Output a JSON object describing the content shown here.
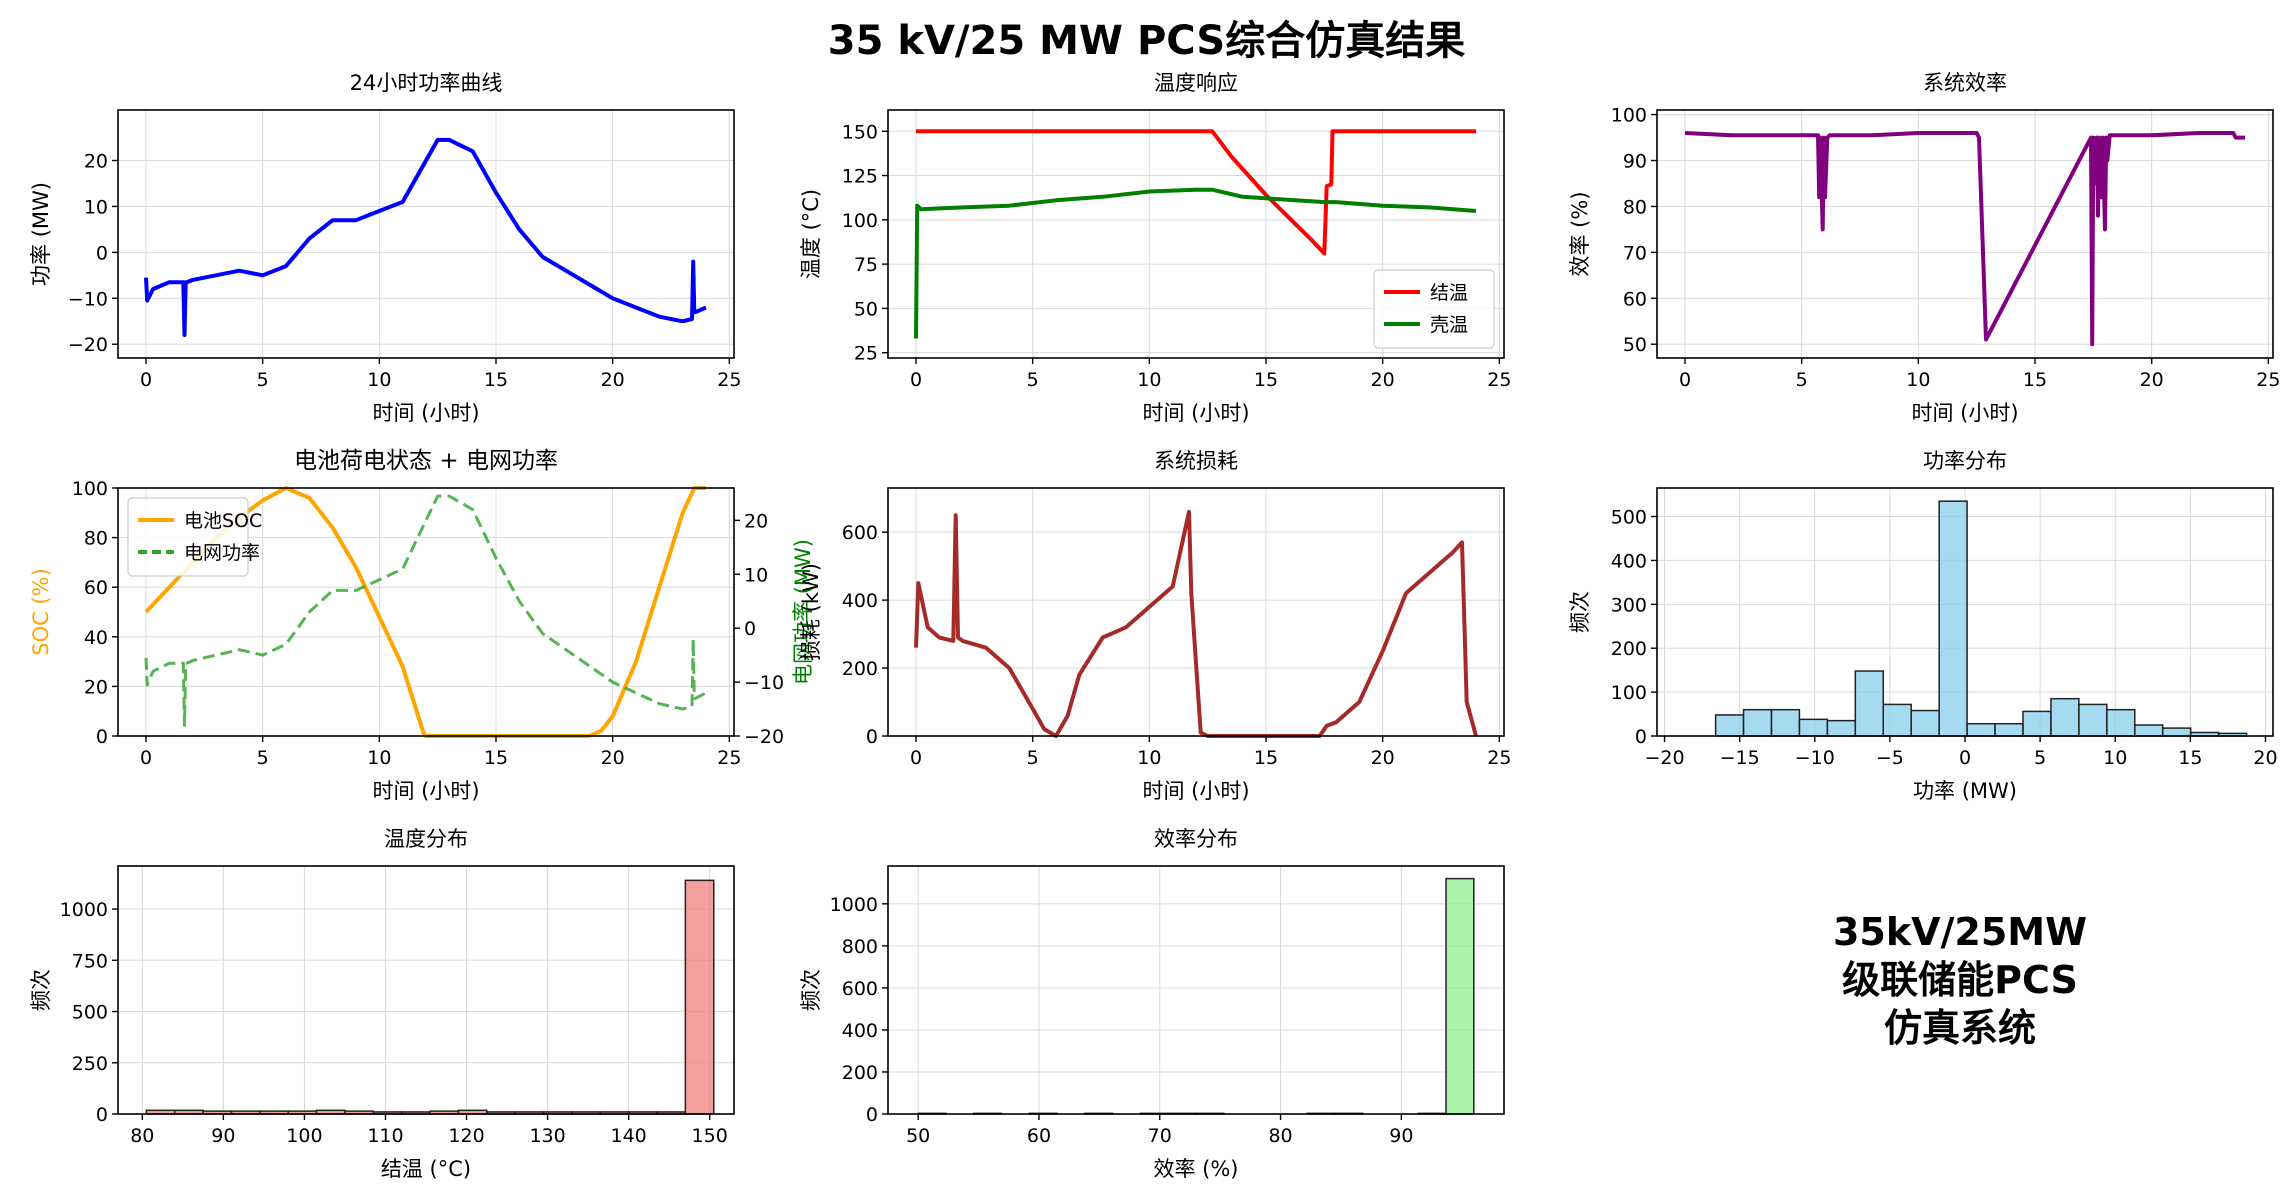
{
  "figure": {
    "suptitle": "35 kV/25 MW PCS综合仿真结果",
    "note": "35kV/25MW\n级联储能PCS\n仿真系统"
  },
  "chart_data": [
    {
      "id": "power",
      "type": "line",
      "title": "24小时功率曲线",
      "xlabel": "时间 (小时)",
      "ylabel": "功率 (MW)",
      "xlim": [
        -1.2,
        25.2
      ],
      "ylim": [
        -23,
        31
      ],
      "xticks": [
        0,
        5,
        10,
        15,
        20,
        25
      ],
      "yticks": [
        -20,
        -10,
        0,
        10,
        20
      ],
      "grid": true,
      "series": [
        {
          "color": "#0000ff",
          "x": [
            0,
            0.05,
            0.3,
            1,
            1.6,
            1.65,
            1.7,
            1.75,
            2,
            3,
            4,
            5,
            6,
            7,
            8,
            9,
            10,
            11,
            12,
            12.5,
            13,
            14,
            15,
            16,
            17,
            18,
            19,
            20,
            21,
            22,
            23,
            23.4,
            23.45,
            23.5,
            23.55,
            24
          ],
          "y": [
            -5.5,
            -10.5,
            -8,
            -6.5,
            -6.5,
            -18,
            -6.5,
            -6.5,
            -6,
            -5,
            -4,
            -5,
            -3,
            3,
            7,
            7,
            9,
            11,
            20,
            24.5,
            24.5,
            22,
            13,
            5,
            -1,
            -4,
            -7,
            -10,
            -12,
            -14,
            -15,
            -14.5,
            -2,
            -13,
            -13,
            -12
          ]
        }
      ]
    },
    {
      "id": "temperature",
      "type": "line",
      "title": "温度响应",
      "xlabel": "时间 (小时)",
      "ylabel": "温度 (°C)",
      "xlim": [
        -1.2,
        25.2
      ],
      "ylim": [
        22,
        162
      ],
      "xticks": [
        0,
        5,
        10,
        15,
        20,
        25
      ],
      "yticks": [
        25,
        50,
        75,
        100,
        125,
        150
      ],
      "grid": true,
      "legend": "lower-right",
      "series": [
        {
          "name": "结温",
          "color": "#ff0000",
          "x": [
            0,
            12.7,
            13.5,
            15,
            16,
            17,
            17.5,
            17.6,
            17.8,
            17.85,
            24
          ],
          "y": [
            150,
            150,
            136,
            114,
            101,
            88,
            81,
            119,
            120,
            150,
            150
          ]
        },
        {
          "name": "壳温",
          "color": "#008000",
          "x": [
            0,
            0.05,
            0.2,
            2,
            4,
            6,
            8,
            10,
            12,
            12.7,
            14,
            17.5,
            18,
            20,
            22,
            24
          ],
          "y": [
            33,
            108,
            106,
            107,
            108,
            111,
            113,
            116,
            117,
            117,
            113,
            110,
            110,
            108,
            107,
            105
          ]
        }
      ]
    },
    {
      "id": "efficiency",
      "type": "line",
      "title": "系统效率",
      "xlabel": "时间 (小时)",
      "ylabel": "效率 (%)",
      "xlim": [
        -1.2,
        25.2
      ],
      "ylim": [
        47,
        101
      ],
      "xticks": [
        0,
        5,
        10,
        15,
        20,
        25
      ],
      "yticks": [
        50,
        60,
        70,
        80,
        90,
        100
      ],
      "grid": true,
      "series": [
        {
          "color": "#800080",
          "x": [
            0,
            2,
            5.7,
            5.75,
            5.8,
            5.9,
            5.95,
            6.0,
            6.1,
            6.2,
            8,
            10,
            12.5,
            12.6,
            12.9,
            17.4,
            17.45,
            17.5,
            17.55,
            17.65,
            17.7,
            17.75,
            17.85,
            17.9,
            18.0,
            18.05,
            18.1,
            18.2,
            20,
            22,
            23.5,
            23.6,
            24
          ],
          "y": [
            96,
            95.5,
            95.5,
            82,
            95,
            75,
            95,
            82,
            95,
            95.5,
            95.5,
            96,
            96,
            95,
            51,
            95,
            50,
            95,
            85,
            95,
            78,
            95,
            82,
            95,
            75,
            95,
            90,
            95.5,
            95.5,
            96,
            96,
            95,
            95
          ]
        }
      ]
    },
    {
      "id": "soc_grid",
      "type": "line",
      "title": "电池荷电状态 + 电网功率",
      "xlabel": "时间 (小时)",
      "ylabel": "SOC (%)",
      "ylabel_right": "电网功率 (MW)",
      "xlim": [
        -1.2,
        25.2
      ],
      "ylim": [
        0,
        100
      ],
      "ylim_right": [
        -20,
        26
      ],
      "xticks": [
        0,
        5,
        10,
        15,
        20,
        25
      ],
      "yticks": [
        0,
        20,
        40,
        60,
        80,
        100
      ],
      "yticks_right": [
        -20,
        -10,
        0,
        10,
        20
      ],
      "grid": true,
      "legend": "upper-left",
      "series": [
        {
          "name": "电池SOC",
          "color": "#ffa500",
          "axis": "left",
          "x": [
            0,
            1,
            2,
            3,
            4,
            5,
            6,
            7,
            8,
            9,
            10,
            11,
            11.9,
            12,
            19,
            19.5,
            20,
            21,
            22,
            23,
            23.5,
            24
          ],
          "y": [
            50,
            60,
            70,
            80,
            88,
            95,
            100,
            96,
            84,
            68,
            48,
            28,
            1,
            0,
            0,
            2,
            8,
            30,
            60,
            90,
            100,
            100
          ]
        },
        {
          "name": "电网功率",
          "color": "#2ca02c",
          "axis": "right",
          "dashed": true,
          "x": [
            0,
            0.05,
            0.3,
            1,
            1.6,
            1.65,
            1.7,
            1.75,
            2,
            3,
            4,
            5,
            6,
            7,
            8,
            9,
            10,
            11,
            12,
            12.5,
            13,
            14,
            15,
            16,
            17,
            18,
            19,
            20,
            21,
            22,
            23,
            23.4,
            23.45,
            23.5,
            23.55,
            24
          ],
          "y": [
            -5.5,
            -10.5,
            -8,
            -6.5,
            -6.5,
            -18,
            -6.5,
            -6.5,
            -6,
            -5,
            -4,
            -5,
            -3,
            3,
            7,
            7,
            9,
            11,
            20,
            24.5,
            24.5,
            22,
            13,
            5,
            -1,
            -4,
            -7,
            -10,
            -12,
            -14,
            -15,
            -14.5,
            -2,
            -13,
            -13,
            -12
          ]
        }
      ]
    },
    {
      "id": "loss",
      "type": "line",
      "title": "系统损耗",
      "xlabel": "时间 (小时)",
      "ylabel": "损耗 (kW)",
      "xlim": [
        -1.2,
        25.2
      ],
      "ylim": [
        0,
        730
      ],
      "xticks": [
        0,
        5,
        10,
        15,
        20,
        25
      ],
      "yticks": [
        0,
        200,
        400,
        600
      ],
      "grid": true,
      "series": [
        {
          "color": "#a52a2a",
          "x": [
            0,
            0.1,
            0.5,
            1,
            1.6,
            1.7,
            1.8,
            2,
            3,
            4,
            5,
            5.5,
            6,
            6.5,
            7,
            8,
            9,
            10,
            11,
            11.7,
            11.8,
            12.2,
            12.5,
            17.3,
            17.6,
            18,
            19,
            20,
            21,
            22,
            23,
            23.4,
            23.6,
            24
          ],
          "y": [
            260,
            450,
            320,
            290,
            280,
            650,
            290,
            280,
            260,
            200,
            80,
            20,
            0,
            60,
            180,
            290,
            320,
            380,
            440,
            660,
            420,
            10,
            0,
            0,
            30,
            40,
            100,
            250,
            420,
            480,
            540,
            570,
            100,
            0
          ]
        }
      ]
    },
    {
      "id": "power_hist",
      "type": "bar",
      "title": "功率分布",
      "xlabel": "功率 (MW)",
      "ylabel": "频次",
      "xlim": [
        -20.5,
        20.5
      ],
      "ylim": [
        0,
        565
      ],
      "xticks": [
        -20,
        -15,
        -10,
        -5,
        0,
        5,
        10,
        15,
        20
      ],
      "yticks": [
        0,
        100,
        200,
        300,
        400,
        500
      ],
      "grid": true,
      "color": "#87ceeb",
      "bin_edges": [
        -16.6,
        -14.74,
        -12.88,
        -11.02,
        -9.16,
        -7.3,
        -5.44,
        -3.58,
        -1.72,
        0.14,
        2.0,
        3.86,
        5.72,
        7.58,
        9.44,
        11.3,
        13.16,
        15.02,
        16.88,
        18.74
      ],
      "values": [
        48,
        60,
        60,
        38,
        35,
        148,
        72,
        58,
        535,
        28,
        28,
        56,
        85,
        72,
        60,
        25,
        18,
        8,
        6
      ]
    },
    {
      "id": "temp_hist",
      "type": "bar",
      "title": "温度分布",
      "xlabel": "结温 (°C)",
      "ylabel": "频次",
      "xlim": [
        77,
        153
      ],
      "ylim": [
        0,
        1210
      ],
      "xticks": [
        80,
        90,
        100,
        110,
        120,
        130,
        140,
        150
      ],
      "yticks": [
        0,
        250,
        500,
        750,
        1000
      ],
      "grid": true,
      "color": "#f08080",
      "bin_edges": [
        80.5,
        84.0,
        87.5,
        91.0,
        94.5,
        98.0,
        101.5,
        105.0,
        108.5,
        112.0,
        115.5,
        119.0,
        122.5,
        126.0,
        129.5,
        133.0,
        136.5,
        140.0,
        143.5,
        147.0,
        150.5
      ],
      "values": [
        18,
        18,
        14,
        14,
        14,
        14,
        18,
        14,
        10,
        10,
        14,
        18,
        10,
        10,
        10,
        10,
        10,
        10,
        10,
        1140
      ]
    },
    {
      "id": "eff_hist",
      "type": "bar",
      "title": "效率分布",
      "xlabel": "效率 (%)",
      "ylabel": "频次",
      "xlim": [
        47.5,
        98.5
      ],
      "ylim": [
        0,
        1180
      ],
      "xticks": [
        50,
        60,
        70,
        80,
        90
      ],
      "yticks": [
        0,
        200,
        400,
        600,
        800,
        1000
      ],
      "grid": true,
      "color": "#90ee90",
      "bin_edges": [
        50.0,
        52.3,
        54.6,
        56.9,
        59.2,
        61.5,
        63.8,
        66.1,
        68.4,
        70.7,
        73.0,
        75.3,
        77.6,
        79.9,
        82.2,
        84.5,
        86.8,
        89.1,
        91.4,
        93.7,
        96.0
      ],
      "values": [
        3,
        0,
        3,
        0,
        3,
        0,
        3,
        0,
        3,
        3,
        3,
        0,
        0,
        0,
        3,
        3,
        0,
        0,
        3,
        1120
      ]
    }
  ]
}
